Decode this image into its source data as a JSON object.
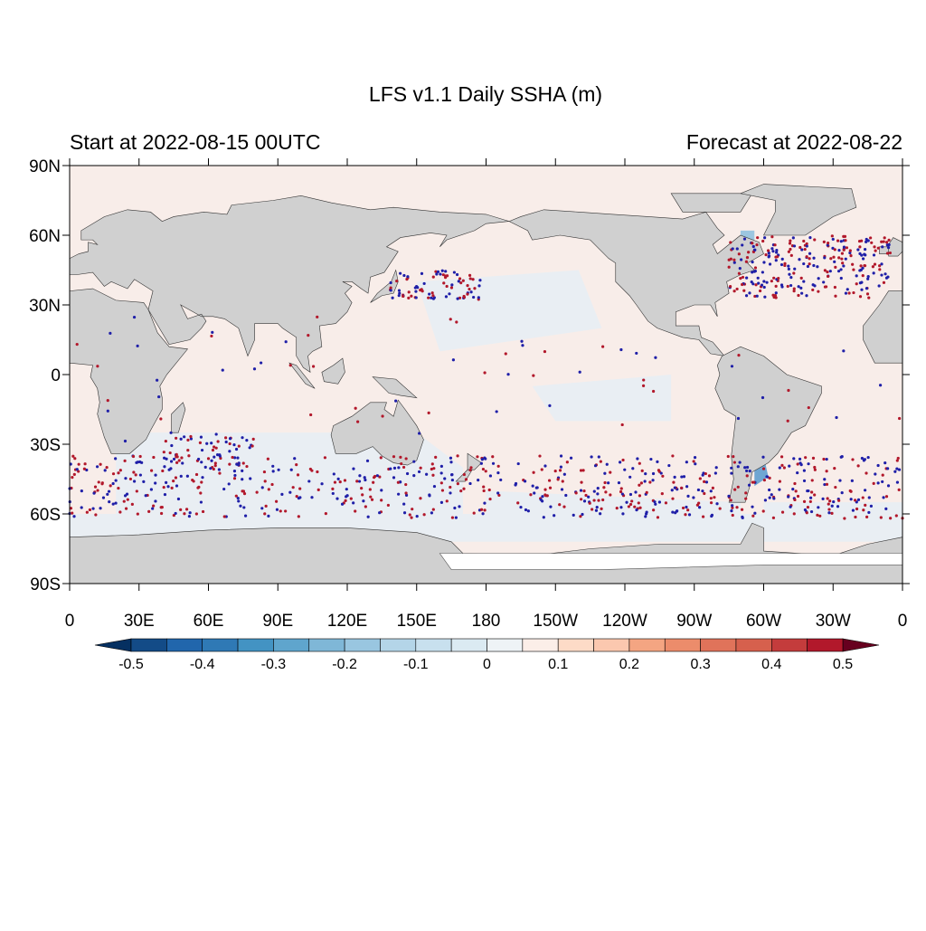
{
  "title": "LFS v1.1 Daily SSHA (m)",
  "subtitle_left": "Start at 2022-08-15 00UTC",
  "subtitle_right": "Forecast at 2022-08-22",
  "lat_ticks": [
    {
      "value": 90,
      "label": "90N"
    },
    {
      "value": 60,
      "label": "60N"
    },
    {
      "value": 30,
      "label": "30N"
    },
    0,
    {
      "value": -30,
      "label": "30S"
    },
    {
      "value": -60,
      "label": "60S"
    },
    {
      "value": -90,
      "label": "90S"
    }
  ],
  "lon_ticks": [
    0,
    {
      "value": 30,
      "label": "30E"
    },
    {
      "value": 60,
      "label": "60E"
    },
    {
      "value": 90,
      "label": "90E"
    },
    {
      "value": 120,
      "label": "120E"
    },
    {
      "value": 150,
      "label": "150E"
    },
    180,
    {
      "value": 210,
      "label": "150W"
    },
    {
      "value": 240,
      "label": "120W"
    },
    {
      "value": 270,
      "label": "90W"
    },
    {
      "value": 300,
      "label": "60W"
    },
    {
      "value": 330,
      "label": "30W"
    },
    {
      "value": 360,
      "label": "0"
    }
  ],
  "colorbar": {
    "labels": [
      -0.5,
      -0.4,
      -0.3,
      -0.2,
      -0.1,
      0,
      0.1,
      0.2,
      0.3,
      0.4,
      0.5
    ],
    "colors": [
      "#053061",
      "#134b87",
      "#2166ac",
      "#2f79b5",
      "#4393c3",
      "#5fa5cd",
      "#7fb7d7",
      "#99c6e0",
      "#b4d5e8",
      "#c8e0ee",
      "#dbeaf2",
      "#eef3f6",
      "#fbeee8",
      "#fddbc7",
      "#fbc8af",
      "#f4a582",
      "#ec8c6b",
      "#e0735a",
      "#d6604d",
      "#c43c3c",
      "#b2182b",
      "#67001f"
    ]
  }
}
